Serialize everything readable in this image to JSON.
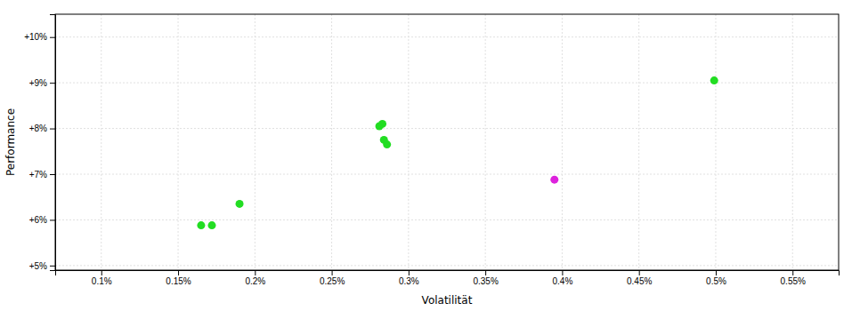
{
  "chart_data": {
    "type": "scatter",
    "x_label": "Volatilität",
    "y_label": "Performance",
    "xlim": [
      0.07,
      0.58
    ],
    "ylim": [
      4.9,
      10.5
    ],
    "xticks": [
      {
        "value": 0.1,
        "label": "0.1%"
      },
      {
        "value": 0.15,
        "label": "0.15%"
      },
      {
        "value": 0.2,
        "label": "0.2%"
      },
      {
        "value": 0.25,
        "label": "0.25%"
      },
      {
        "value": 0.3,
        "label": "0.3%"
      },
      {
        "value": 0.35,
        "label": "0.35%"
      },
      {
        "value": 0.4,
        "label": "0.4%"
      },
      {
        "value": 0.45,
        "label": "0.45%"
      },
      {
        "value": 0.5,
        "label": "0.5%"
      },
      {
        "value": 0.55,
        "label": "0.55%"
      }
    ],
    "yticks": [
      {
        "value": 5,
        "label": "+5%"
      },
      {
        "value": 6,
        "label": "+6%"
      },
      {
        "value": 7,
        "label": "+7%"
      },
      {
        "value": 8,
        "label": "+8%"
      },
      {
        "value": 9,
        "label": "+9%"
      },
      {
        "value": 10,
        "label": "+10%"
      }
    ],
    "grid": true,
    "series": [
      {
        "color": "#22dd22",
        "x": [
          0.284,
          0.286,
          0.281,
          0.283,
          0.19,
          0.165,
          0.172,
          0.499
        ],
        "values": [
          7.75,
          7.65,
          8.05,
          8.1,
          6.35,
          5.88,
          5.88,
          9.05
        ]
      },
      {
        "color": "#dd22dd",
        "x": [
          0.395
        ],
        "values": [
          6.88
        ]
      }
    ]
  }
}
